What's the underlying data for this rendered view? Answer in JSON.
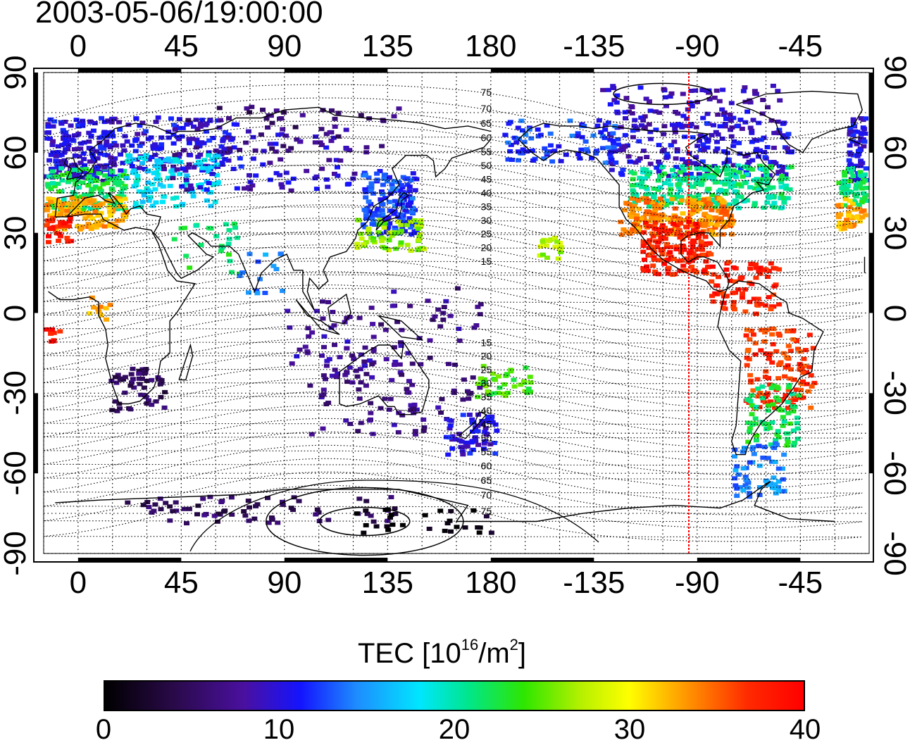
{
  "title": "2003-05-06/19:00:00",
  "longitude_labels_top": [
    "0",
    "45",
    "90",
    "135",
    "180",
    "-135",
    "-90",
    "-45"
  ],
  "longitude_labels_bottom": [
    "0",
    "45",
    "90",
    "135",
    "180",
    "-135",
    "-90",
    "-45"
  ],
  "latitude_labels_left": [
    "90",
    "60",
    "30",
    "0",
    "-30",
    "-60",
    "-90"
  ],
  "latitude_labels_right": [
    "90",
    "60",
    "30",
    "0",
    "-30",
    "-60",
    "-90"
  ],
  "contour_labels_north": [
    "80",
    "75",
    "70",
    "65",
    "60",
    "55",
    "50",
    "45",
    "40",
    "35",
    "30",
    "25",
    "20",
    "15"
  ],
  "contour_labels_south": [
    "15",
    "20",
    "25",
    "30",
    "35",
    "40",
    "45",
    "50",
    "55",
    "60",
    "65",
    "70",
    "75"
  ],
  "colorbar": {
    "title": "TEC  [10",
    "title_sup": "16",
    "title_mid": "/m",
    "title_sup2": "2",
    "title_end": "]",
    "ticks": [
      "0",
      "10",
      "20",
      "30",
      "40"
    ],
    "min": 0,
    "max": 40
  },
  "marker_longitude": -105,
  "colors": {
    "marker_line": "#ff0000",
    "grid": "#000000"
  }
}
